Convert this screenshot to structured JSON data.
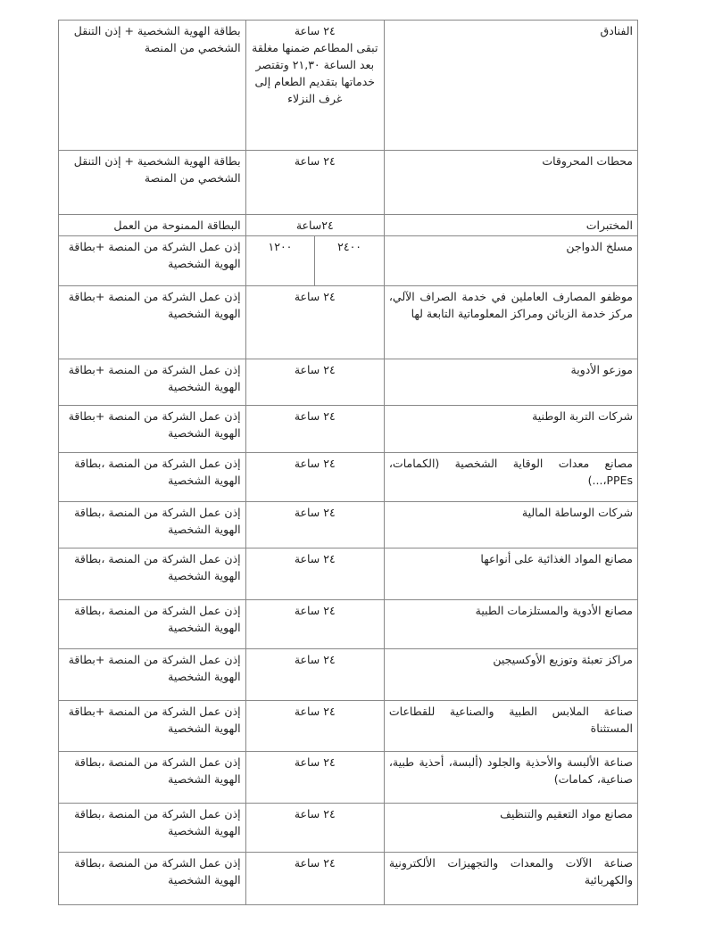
{
  "rows": [
    {
      "sector": "الفنادق",
      "hours": "٢٤ ساعة",
      "note": "تبقى المطاعم ضمنها مغلقة بعد الساعة ٢١,٣٠ وتقتصر خدماتها بتقديم الطعام إلى غرف النزلاء",
      "document": "بطاقة الهوية الشخصية + إذن التنقل الشخصي من المنصة"
    },
    {
      "sector": "محطات المحروقات",
      "hours": "٢٤ ساعة",
      "document": "بطاقة الهوية الشخصية + إذن التنقل الشخصي من المنصة"
    },
    {
      "sector": "المختبرات",
      "hours": "٢٤ساعة",
      "document": "البطاقة الممنوحة من العمل"
    },
    {
      "sector": "مسلخ الدواجن",
      "hours_from": "٢٤٠٠",
      "hours_to": "١٢٠٠",
      "document": "إذن عمل الشركة من المنصة +بطاقة الهوية الشخصية"
    },
    {
      "sector": "موظفو المصارف العاملين في خدمة الصراف الآلي، مركز خدمة الزبائن ومراكز المعلوماتية التابعة لها",
      "hours": "٢٤ ساعة",
      "document": "إذن عمل الشركة من المنصة +بطاقة الهوية الشخصية"
    },
    {
      "sector": "موزعو الأدوية",
      "hours": "٢٤ ساعة",
      "document": "إذن عمل الشركة من المنصة +بطاقة الهوية الشخصية"
    },
    {
      "sector": "شركات التربة الوطنية",
      "hours": "٢٤ ساعة",
      "document": "إذن عمل الشركة من المنصة +بطاقة الهوية الشخصية"
    },
    {
      "sector": "مصانع معدات الوقاية الشخصية (الكمامات، PPEs،...)",
      "hours": "٢٤ ساعة",
      "document": "إذن عمل الشركة من المنصة ،بطاقة الهوية الشخصية"
    },
    {
      "sector": "شركات الوساطة المالية",
      "hours": "٢٤ ساعة",
      "document": "إذن عمل الشركة من المنصة ،بطاقة الهوية الشخصية"
    },
    {
      "sector": "مصانع المواد الغذائية على أنواعها",
      "hours": "٢٤ ساعة",
      "document": "إذن عمل الشركة من المنصة ،بطاقة الهوية الشخصية"
    },
    {
      "sector": "مصانع الأدوية والمستلزمات الطبية",
      "hours": "٢٤ ساعة",
      "document": "إذن عمل الشركة من المنصة ،بطاقة الهوية الشخصية"
    },
    {
      "sector": "مراكز تعبئة وتوزيع الأوكسيجين",
      "hours": "٢٤ ساعة",
      "document": "إذن عمل الشركة من المنصة +بطاقة الهوية الشخصية"
    },
    {
      "sector": "صناعة الملابس الطبية والصناعية للقطاعات المستثناة",
      "hours": "٢٤ ساعة",
      "document": "إذن عمل الشركة من المنصة +بطاقة الهوية الشخصية"
    },
    {
      "sector": "صناعة الألبسة والأحذية والجلود (ألبسة، أحذية طبية، صناعية، كمامات)",
      "hours": "٢٤ ساعة",
      "document": "إذن عمل الشركة من المنصة ،بطاقة الهوية الشخصية"
    },
    {
      "sector": "مصانع مواد التعقيم والتنظيف",
      "hours": "٢٤ ساعة",
      "document": "إذن عمل الشركة من المنصة ،بطاقة الهوية الشخصية"
    },
    {
      "sector": "صناعة الآلات والمعدات والتجهيزات الألكترونية والكهربائية",
      "hours": "٢٤ ساعة",
      "document": "إذن عمل الشركة من المنصة ،بطاقة الهوية الشخصية"
    }
  ]
}
